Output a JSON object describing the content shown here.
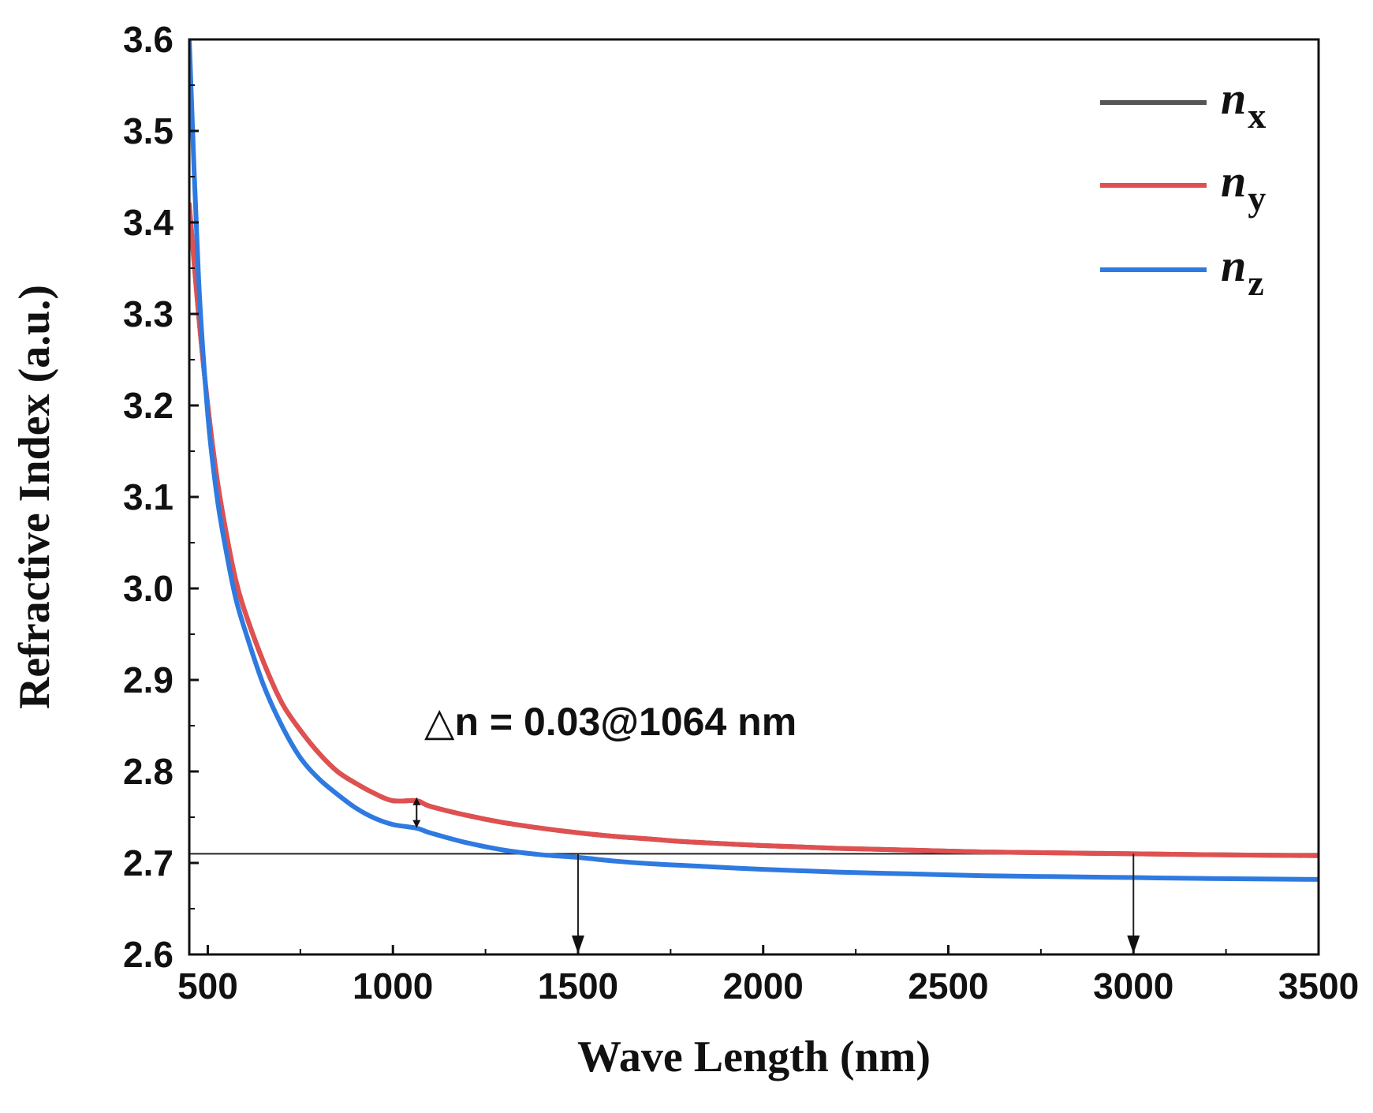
{
  "chart_data": {
    "type": "line",
    "title": "",
    "xlabel": "Wave Length (nm)",
    "ylabel": "Refractive Index (a.u.)",
    "xlim": [
      450,
      3500
    ],
    "ylim": [
      2.6,
      3.6
    ],
    "x_ticks": [
      500,
      1000,
      1500,
      2000,
      2500,
      3000,
      3500
    ],
    "x_tick_labels": [
      "500",
      "1000",
      "1500",
      "2000",
      "2500",
      "3000",
      "3500"
    ],
    "y_ticks": [
      2.6,
      2.7,
      2.8,
      2.9,
      3.0,
      3.1,
      3.2,
      3.3,
      3.4,
      3.5,
      3.6
    ],
    "y_tick_labels": [
      "2.6",
      "2.7",
      "2.8",
      "2.9",
      "3.0",
      "3.1",
      "3.2",
      "3.3",
      "3.4",
      "3.5",
      "3.6"
    ],
    "grid": false,
    "legend_position": "top-right",
    "x": [
      450,
      475,
      500,
      525,
      550,
      575,
      600,
      650,
      700,
      750,
      800,
      850,
      900,
      950,
      1000,
      1064,
      1100,
      1200,
      1300,
      1400,
      1500,
      1600,
      1700,
      1800,
      2000,
      2200,
      2400,
      2600,
      2800,
      3000,
      3200,
      3500
    ],
    "series": [
      {
        "name": "n_x",
        "italic": "n",
        "sub": "x",
        "color": "#555555",
        "values": [
          3.42,
          3.3,
          3.2,
          3.12,
          3.06,
          3.01,
          2.975,
          2.92,
          2.875,
          2.845,
          2.82,
          2.8,
          2.787,
          2.776,
          2.768,
          2.768,
          2.762,
          2.752,
          2.744,
          2.738,
          2.733,
          2.729,
          2.726,
          2.723,
          2.719,
          2.716,
          2.714,
          2.712,
          2.711,
          2.71,
          2.709,
          2.708
        ]
      },
      {
        "name": "n_y",
        "italic": "n",
        "sub": "y",
        "color": "#e05050",
        "values": [
          3.42,
          3.3,
          3.2,
          3.12,
          3.06,
          3.01,
          2.975,
          2.92,
          2.875,
          2.845,
          2.82,
          2.8,
          2.787,
          2.776,
          2.768,
          2.768,
          2.762,
          2.752,
          2.744,
          2.738,
          2.733,
          2.729,
          2.726,
          2.723,
          2.719,
          2.716,
          2.714,
          2.712,
          2.711,
          2.71,
          2.709,
          2.708
        ]
      },
      {
        "name": "n_z",
        "italic": "n",
        "sub": "z",
        "color": "#2f7ae0",
        "values": [
          3.6,
          3.34,
          3.19,
          3.1,
          3.04,
          2.99,
          2.955,
          2.895,
          2.85,
          2.815,
          2.792,
          2.775,
          2.76,
          2.749,
          2.742,
          2.738,
          2.733,
          2.722,
          2.714,
          2.709,
          2.706,
          2.702,
          2.699,
          2.697,
          2.693,
          2.69,
          2.688,
          2.686,
          2.685,
          2.684,
          2.683,
          2.682
        ]
      }
    ],
    "reference_line": {
      "y": 2.71
    },
    "arrows_down": [
      {
        "x": 1500
      },
      {
        "x": 3000
      }
    ],
    "delta_marker": {
      "x": 1064,
      "y_top": 2.77,
      "y_bottom": 2.74
    },
    "annotation": "△n = 0.03@1064 nm"
  }
}
